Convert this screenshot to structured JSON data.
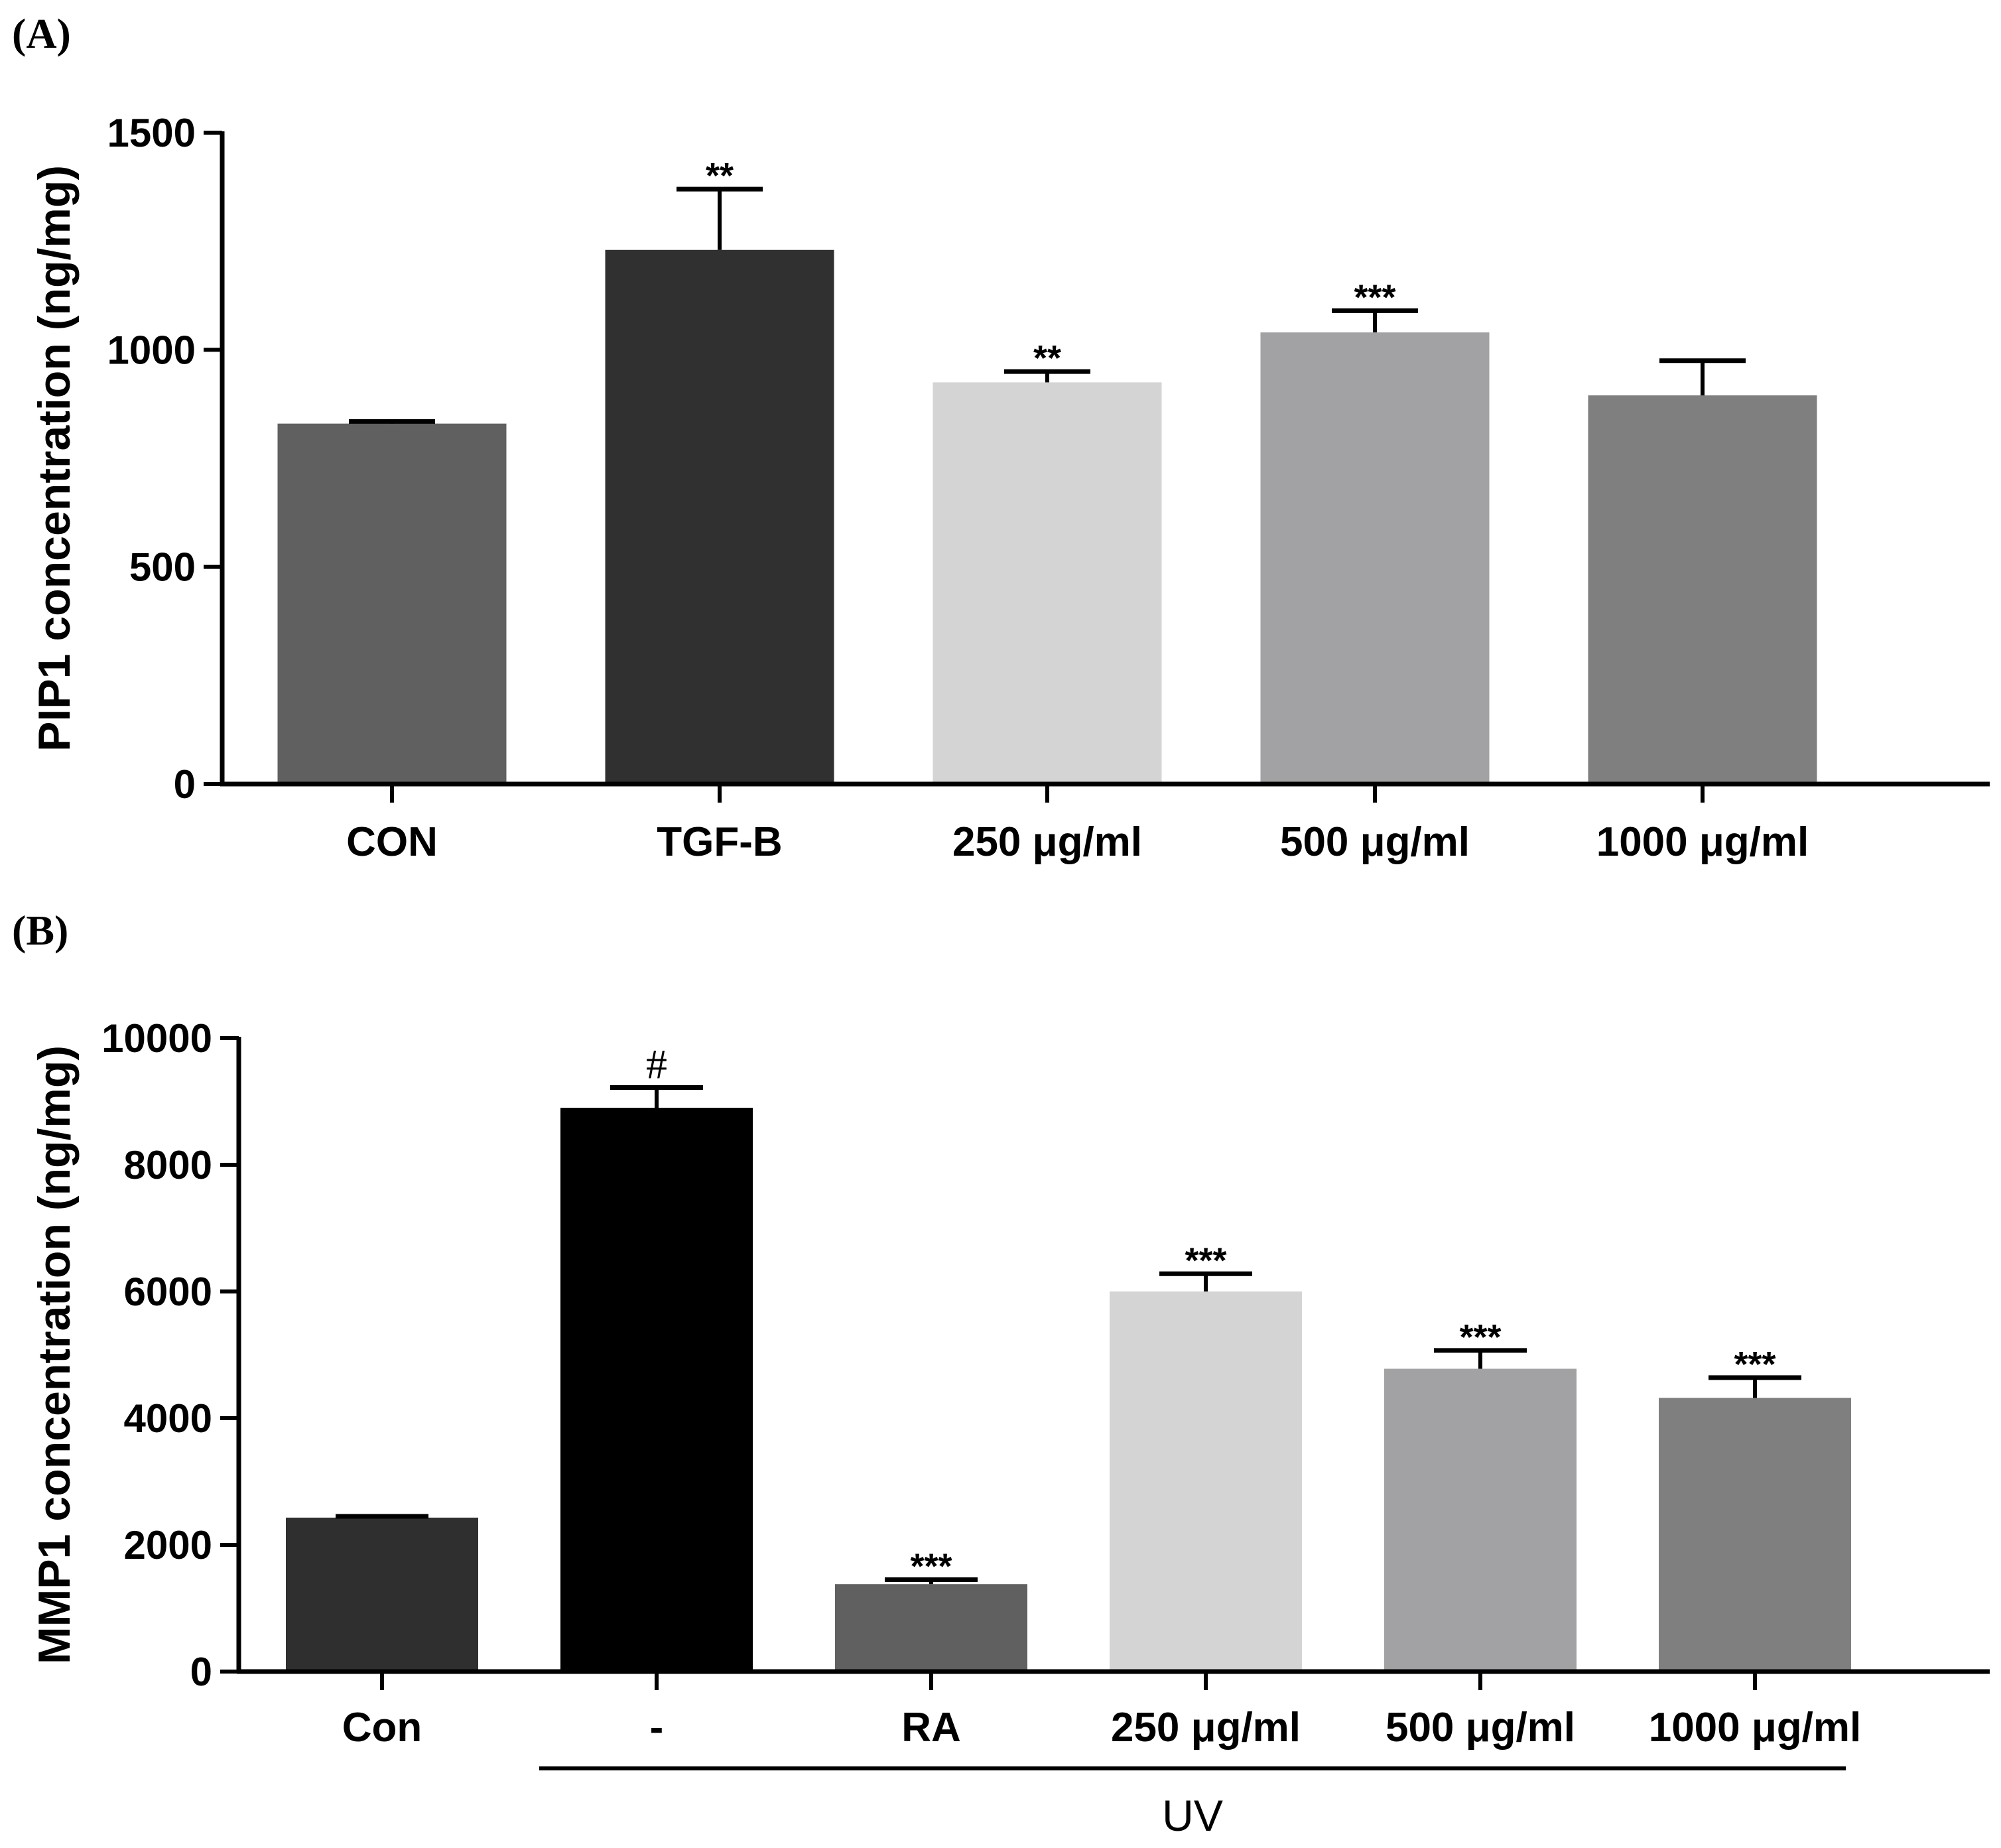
{
  "chart_data": [
    {
      "panel_label": "(A)",
      "type": "bar",
      "title": "",
      "xlabel": "",
      "ylabel": "PIP1 concentration (ng/mg)",
      "ylim": [
        0,
        1500
      ],
      "yticks": [
        0,
        500,
        1000,
        1500
      ],
      "ytick_labels": [
        "0",
        "500",
        "1000",
        "1500"
      ],
      "grid": false,
      "categories": [
        "CON",
        "TGF-B",
        "250 μg/ml",
        "500 μg/ml",
        "1000 μg/ml"
      ],
      "values": [
        830,
        1230,
        925,
        1040,
        895
      ],
      "errors": [
        5,
        140,
        25,
        50,
        80
      ],
      "significance": [
        "",
        "**",
        "**",
        "***",
        ""
      ],
      "colors": [
        "#606060",
        "#303030",
        "#d4d4d4",
        "#a2a2a4",
        "#7f7f7f"
      ]
    },
    {
      "panel_label": "(B)",
      "type": "bar",
      "title": "",
      "xlabel": "",
      "ylabel": "MMP1 concentration (ng/mg)",
      "ylim": [
        0,
        10000
      ],
      "yticks": [
        0,
        2000,
        4000,
        6000,
        8000,
        10000
      ],
      "ytick_labels": [
        "0",
        "2000",
        "4000",
        "6000",
        "8000",
        "10000"
      ],
      "grid": false,
      "categories": [
        "Con",
        "-",
        "RA",
        "250 μg/ml",
        "500 μg/ml",
        "1000 μg/ml"
      ],
      "values": [
        2430,
        8900,
        1380,
        6000,
        4780,
        4320
      ],
      "errors": [
        20,
        320,
        70,
        280,
        290,
        320
      ],
      "significance": [
        "",
        "#",
        "***",
        "***",
        "***",
        "***"
      ],
      "colors": [
        "#2f2f2f",
        "#000000",
        "#606060",
        "#d4d4d4",
        "#a2a2a4",
        "#7f7f7f"
      ],
      "group_label": "UV"
    }
  ]
}
